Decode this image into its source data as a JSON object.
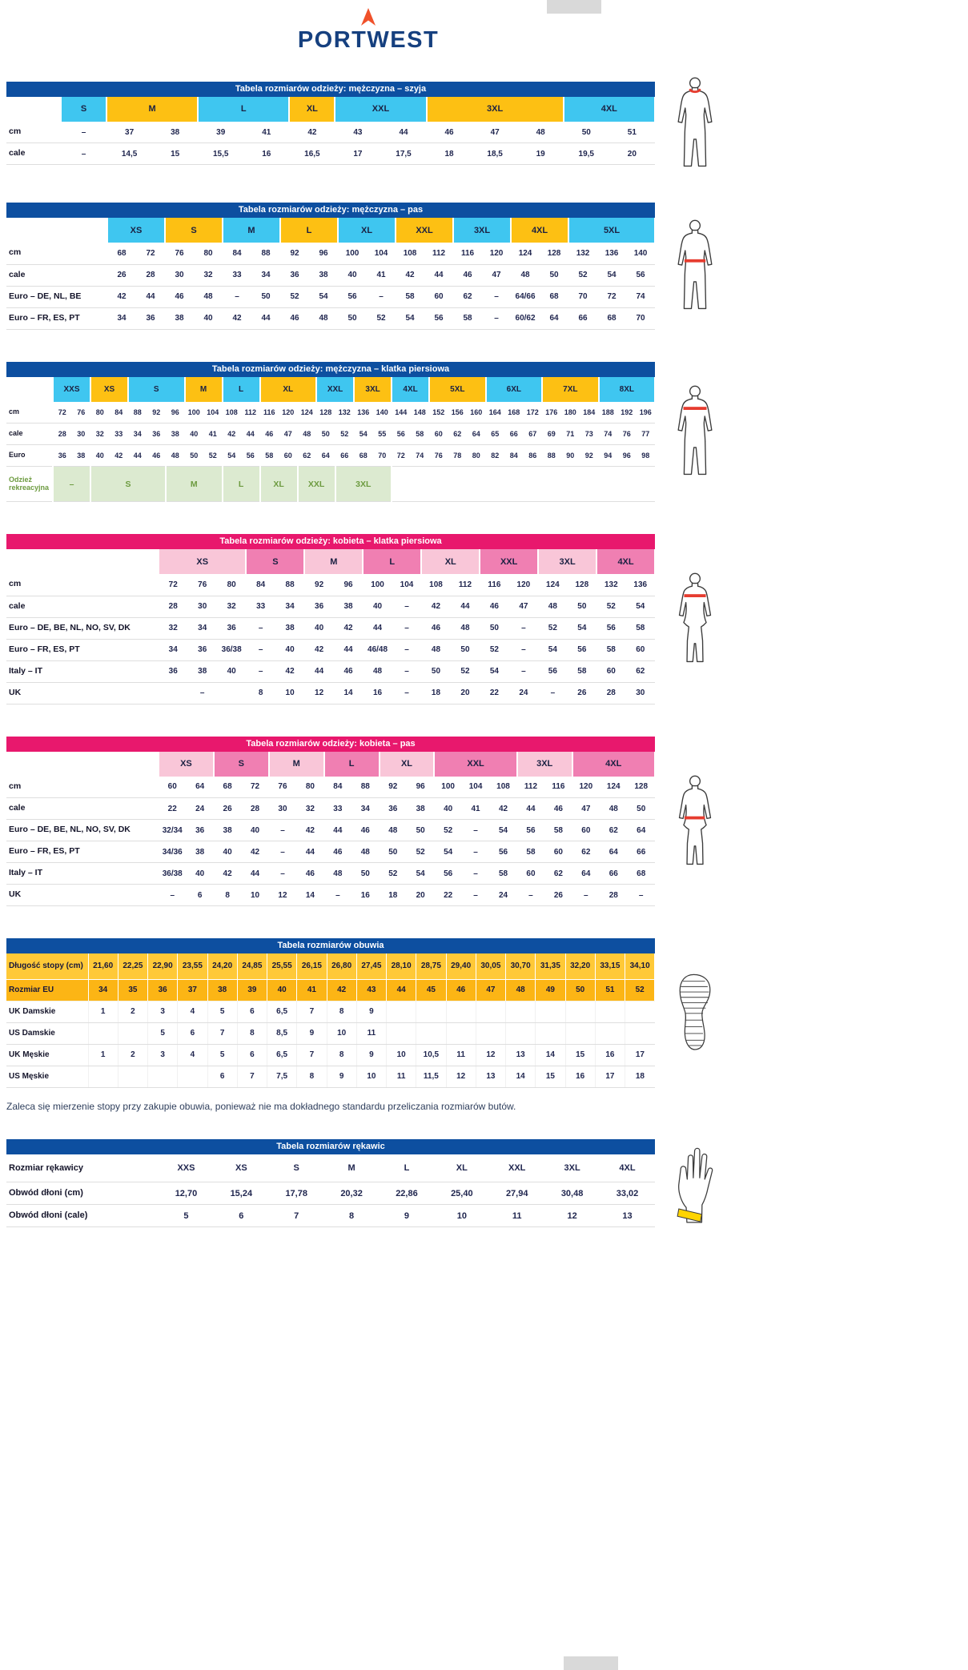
{
  "logo": {
    "brand": "PORTWEST"
  },
  "colors": {
    "blue": "#0d4fa0",
    "pink": "#e8186d",
    "cyan": "#3fc6f0",
    "yellow": "#fdc013",
    "pink_light": "#f9c6d8",
    "pink_dark": "#f07fb2",
    "yellow1": "#ffc937",
    "yellow2": "#fcb515",
    "green_bg": "#dcead0",
    "green_text": "#6d9b40",
    "red": "#e63c2f",
    "orange": "#f0512a",
    "navy": "#16407f",
    "gray_box": "#d9d9d9"
  },
  "tables": [
    {
      "id": "men-neck",
      "title": "Tabela rozmiarów odzieży: mężczyzna – szyja",
      "theme": "blue",
      "figure": "male-neck",
      "label_width": 68,
      "cols": 13,
      "bands": [
        {
          "label": "S",
          "span": 1,
          "c": "cyan"
        },
        {
          "label": "M",
          "span": 2,
          "c": "yellow"
        },
        {
          "label": "L",
          "span": 2,
          "c": "cyan"
        },
        {
          "label": "XL",
          "span": 1,
          "c": "yellow"
        },
        {
          "label": "XXL",
          "span": 2,
          "c": "cyan"
        },
        {
          "label": "3XL",
          "span": 3,
          "c": "yellow"
        },
        {
          "label": "4XL",
          "span": 2,
          "c": "cyan"
        }
      ],
      "rows": [
        {
          "label": "cm",
          "cells": [
            "–",
            "37",
            "38",
            "39",
            "41",
            "42",
            "43",
            "44",
            "46",
            "47",
            "48",
            "50",
            "51"
          ]
        },
        {
          "label": "cale",
          "cells": [
            "–",
            "14,5",
            "15",
            "15,5",
            "16",
            "16,5",
            "17",
            "17,5",
            "18",
            "18,5",
            "19",
            "19,5",
            "20"
          ]
        }
      ]
    },
    {
      "id": "men-waist",
      "title": "Tabela rozmiarów odzieży: mężczyzna – pas",
      "theme": "blue",
      "figure": "male-waist",
      "label_width": 126,
      "cols": 19,
      "bands": [
        {
          "label": "XS",
          "span": 2,
          "c": "cyan"
        },
        {
          "label": "S",
          "span": 2,
          "c": "yellow"
        },
        {
          "label": "M",
          "span": 2,
          "c": "cyan"
        },
        {
          "label": "L",
          "span": 2,
          "c": "yellow"
        },
        {
          "label": "XL",
          "span": 2,
          "c": "cyan"
        },
        {
          "label": "XXL",
          "span": 2,
          "c": "yellow"
        },
        {
          "label": "3XL",
          "span": 2,
          "c": "cyan"
        },
        {
          "label": "4XL",
          "span": 2,
          "c": "yellow"
        },
        {
          "label": "5XL",
          "span": 3,
          "c": "cyan"
        }
      ],
      "rows": [
        {
          "label": "cm",
          "cells": [
            "68",
            "72",
            "76",
            "80",
            "84",
            "88",
            "92",
            "96",
            "100",
            "104",
            "108",
            "112",
            "116",
            "120",
            "124",
            "128",
            "132",
            "136",
            "140"
          ]
        },
        {
          "label": "cale",
          "cells": [
            "26",
            "28",
            "30",
            "32",
            "33",
            "34",
            "36",
            "38",
            "40",
            "41",
            "42",
            "44",
            "46",
            "47",
            "48",
            "50",
            "52",
            "54",
            "56"
          ]
        },
        {
          "label": "Euro – DE, NL, BE",
          "cells": [
            "42",
            "44",
            "46",
            "48",
            "–",
            "50",
            "52",
            "54",
            "56",
            "–",
            "58",
            "60",
            "62",
            "–",
            "64/66",
            "68",
            "70",
            "72",
            "74"
          ]
        },
        {
          "label": "Euro – FR, ES, PT",
          "cells": [
            "34",
            "36",
            "38",
            "40",
            "42",
            "44",
            "46",
            "48",
            "50",
            "52",
            "54",
            "56",
            "58",
            "–",
            "60/62",
            "64",
            "66",
            "68",
            "70"
          ]
        }
      ]
    },
    {
      "id": "men-chest",
      "title": "Tabela rozmiarów odzieży: mężczyzna – klatka piersiowa",
      "theme": "blue",
      "figure": "male-chest",
      "label_width": 58,
      "cols": 32,
      "cls": "dense",
      "bands": [
        {
          "label": "XXS",
          "span": 2,
          "c": "cyan"
        },
        {
          "label": "XS",
          "span": 2,
          "c": "yellow"
        },
        {
          "label": "S",
          "span": 3,
          "c": "cyan"
        },
        {
          "label": "M",
          "span": 2,
          "c": "yellow"
        },
        {
          "label": "L",
          "span": 2,
          "c": "cyan"
        },
        {
          "label": "XL",
          "span": 3,
          "c": "yellow"
        },
        {
          "label": "XXL",
          "span": 2,
          "c": "cyan"
        },
        {
          "label": "3XL",
          "span": 2,
          "c": "yellow"
        },
        {
          "label": "4XL",
          "span": 2,
          "c": "cyan"
        },
        {
          "label": "5XL",
          "span": 3,
          "c": "yellow"
        },
        {
          "label": "6XL",
          "span": 3,
          "c": "cyan"
        },
        {
          "label": "7XL",
          "span": 3,
          "c": "yellow"
        },
        {
          "label": "8XL",
          "span": 3,
          "c": "cyan"
        }
      ],
      "rows": [
        {
          "label": "cm",
          "cells": [
            "72",
            "76",
            "80",
            "84",
            "88",
            "92",
            "96",
            "100",
            "104",
            "108",
            "112",
            "116",
            "120",
            "124",
            "128",
            "132",
            "136",
            "140",
            "144",
            "148",
            "152",
            "156",
            "160",
            "164",
            "168",
            "172",
            "176",
            "180",
            "184",
            "188",
            "192",
            "196"
          ]
        },
        {
          "label": "cale",
          "cells": [
            "28",
            "30",
            "32",
            "33",
            "34",
            "36",
            "38",
            "40",
            "41",
            "42",
            "44",
            "46",
            "47",
            "48",
            "50",
            "52",
            "54",
            "55",
            "56",
            "58",
            "60",
            "62",
            "64",
            "65",
            "66",
            "67",
            "69",
            "71",
            "73",
            "74",
            "76",
            "77"
          ]
        },
        {
          "label": "Euro",
          "cells": [
            "36",
            "38",
            "40",
            "42",
            "44",
            "46",
            "48",
            "50",
            "52",
            "54",
            "56",
            "58",
            "60",
            "62",
            "64",
            "66",
            "68",
            "70",
            "72",
            "74",
            "76",
            "78",
            "80",
            "82",
            "84",
            "86",
            "88",
            "90",
            "92",
            "94",
            "96",
            "98"
          ]
        },
        {
          "label": "Odzież rekreacyjna",
          "cls": "rec",
          "cells": [
            {
              "t": "–",
              "span": 2
            },
            {
              "t": "S",
              "span": 4
            },
            {
              "t": "M",
              "span": 3
            },
            {
              "t": "L",
              "span": 2
            },
            {
              "t": "XL",
              "span": 2
            },
            {
              "t": "XXL",
              "span": 2
            },
            {
              "t": "3XL",
              "span": 3
            },
            {
              "t": "",
              "span": 14
            }
          ]
        }
      ]
    },
    {
      "id": "women-chest",
      "title": "Tabela rozmiarów odzieży: kobieta – klatka piersiowa",
      "theme": "pink",
      "figure": "female-chest",
      "label_width": 190,
      "cols": 17,
      "bands": [
        {
          "label": "XS",
          "span": 3,
          "c": "pink_light"
        },
        {
          "label": "S",
          "span": 2,
          "c": "pink_dark"
        },
        {
          "label": "M",
          "span": 2,
          "c": "pink_light"
        },
        {
          "label": "L",
          "span": 2,
          "c": "pink_dark"
        },
        {
          "label": "XL",
          "span": 2,
          "c": "pink_light"
        },
        {
          "label": "XXL",
          "span": 2,
          "c": "pink_dark"
        },
        {
          "label": "3XL",
          "span": 2,
          "c": "pink_light"
        },
        {
          "label": "4XL",
          "span": 2,
          "c": "pink_dark"
        }
      ],
      "rows": [
        {
          "label": "cm",
          "cells": [
            "72",
            "76",
            "80",
            "84",
            "88",
            "92",
            "96",
            "100",
            "104",
            "108",
            "112",
            "116",
            "120",
            "124",
            "128",
            "132",
            "136"
          ]
        },
        {
          "label": "cale",
          "cells": [
            "28",
            "30",
            "32",
            "33",
            "34",
            "36",
            "38",
            "40",
            "–",
            "42",
            "44",
            "46",
            "47",
            "48",
            "50",
            "52",
            "54"
          ]
        },
        {
          "label": "Euro – DE, BE, NL, NO, SV, DK",
          "cells": [
            "32",
            "34",
            "36",
            "–",
            "38",
            "40",
            "42",
            "44",
            "–",
            "46",
            "48",
            "50",
            "–",
            "52",
            "54",
            "56",
            "58"
          ]
        },
        {
          "label": "Euro – FR, ES, PT",
          "cells": [
            "34",
            "36",
            "36/38",
            "–",
            "40",
            "42",
            "44",
            "46/48",
            "–",
            "48",
            "50",
            "52",
            "–",
            "54",
            "56",
            "58",
            "60"
          ]
        },
        {
          "label": "Italy – IT",
          "cells": [
            "36",
            "38",
            "40",
            "–",
            "42",
            "44",
            "46",
            "48",
            "–",
            "50",
            "52",
            "54",
            "–",
            "56",
            "58",
            "60",
            "62"
          ]
        },
        {
          "label": "UK",
          "cells": [
            {
              "t": "–",
              "span": 3
            },
            "8",
            "10",
            "12",
            "14",
            "16",
            "–",
            "18",
            "20",
            "22",
            "24",
            "–",
            "26",
            "28",
            "30"
          ]
        }
      ]
    },
    {
      "id": "women-waist",
      "title": "Tabela rozmiarów odzieży: kobieta – pas",
      "theme": "pink",
      "figure": "female-waist",
      "label_width": 190,
      "cols": 18,
      "bands": [
        {
          "label": "XS",
          "span": 2,
          "c": "pink_light"
        },
        {
          "label": "S",
          "span": 2,
          "c": "pink_dark"
        },
        {
          "label": "M",
          "span": 2,
          "c": "pink_light"
        },
        {
          "label": "L",
          "span": 2,
          "c": "pink_dark"
        },
        {
          "label": "XL",
          "span": 2,
          "c": "pink_light"
        },
        {
          "label": "XXL",
          "span": 3,
          "c": "pink_dark"
        },
        {
          "label": "3XL",
          "span": 2,
          "c": "pink_light"
        },
        {
          "label": "4XL",
          "span": 3,
          "c": "pink_dark"
        }
      ],
      "rows": [
        {
          "label": "cm",
          "cells": [
            "60",
            "64",
            "68",
            "72",
            "76",
            "80",
            "84",
            "88",
            "92",
            "96",
            "100",
            "104",
            "108",
            "112",
            "116",
            "120",
            "124",
            "128"
          ]
        },
        {
          "label": "cale",
          "cells": [
            "22",
            "24",
            "26",
            "28",
            "30",
            "32",
            "33",
            "34",
            "36",
            "38",
            "40",
            "41",
            "42",
            "44",
            "46",
            "47",
            "48",
            "50"
          ]
        },
        {
          "label": "Euro – DE, BE, NL, NO, SV, DK",
          "cells": [
            "32/34",
            "36",
            "38",
            "40",
            "–",
            "42",
            "44",
            "46",
            "48",
            "50",
            "52",
            "–",
            "54",
            "56",
            "58",
            "60",
            "62",
            "64"
          ]
        },
        {
          "label": "Euro – FR, ES, PT",
          "cells": [
            "34/36",
            "38",
            "40",
            "42",
            "–",
            "44",
            "46",
            "48",
            "50",
            "52",
            "54",
            "–",
            "56",
            "58",
            "60",
            "62",
            "64",
            "66"
          ]
        },
        {
          "label": "Italy – IT",
          "cells": [
            "36/38",
            "40",
            "42",
            "44",
            "–",
            "46",
            "48",
            "50",
            "52",
            "54",
            "56",
            "–",
            "58",
            "60",
            "62",
            "64",
            "66",
            "68"
          ]
        },
        {
          "label": "UK",
          "cells": [
            "–",
            "6",
            "8",
            "10",
            "12",
            "14",
            "–",
            "16",
            "18",
            "20",
            "22",
            "–",
            "24",
            "–",
            "26",
            "–",
            "28",
            "–"
          ]
        }
      ]
    },
    {
      "id": "footwear",
      "title": "Tabela rozmiarów obuwia",
      "theme": "blue",
      "figure": "shoe-sole",
      "label_width": 102,
      "cols": 19,
      "cls": "shoes",
      "footnote": "Zaleca się mierzenie stopy przy zakupie obuwia, ponieważ nie ma dokładnego standardu przeliczania rozmiarów butów.",
      "rows": [
        {
          "label": "Długość stopy (cm)",
          "cls": "yellow1",
          "cells": [
            "21,60",
            "22,25",
            "22,90",
            "23,55",
            "24,20",
            "24,85",
            "25,55",
            "26,15",
            "26,80",
            "27,45",
            "28,10",
            "28,75",
            "29,40",
            "30,05",
            "30,70",
            "31,35",
            "32,20",
            "33,15",
            "34,10"
          ]
        },
        {
          "label": "Rozmiar EU",
          "cls": "yellow2",
          "cells": [
            "34",
            "35",
            "36",
            "37",
            "38",
            "39",
            "40",
            "41",
            "42",
            "43",
            "44",
            "45",
            "46",
            "47",
            "48",
            "49",
            "50",
            "51",
            "52"
          ]
        },
        {
          "label": "UK Damskie",
          "cells": [
            "1",
            "2",
            "3",
            "4",
            "5",
            "6",
            "6,5",
            "7",
            "8",
            "9",
            "",
            "",
            "",
            "",
            "",
            "",
            "",
            "",
            ""
          ]
        },
        {
          "label": "US Damskie",
          "cells": [
            "",
            "",
            "5",
            "6",
            "7",
            "8",
            "8,5",
            "9",
            "10",
            "11",
            "",
            "",
            "",
            "",
            "",
            "",
            "",
            "",
            ""
          ]
        },
        {
          "label": "UK Męskie",
          "cells": [
            "1",
            "2",
            "3",
            "4",
            "5",
            "6",
            "6,5",
            "7",
            "8",
            "9",
            "10",
            "10,5",
            "11",
            "12",
            "13",
            "14",
            "15",
            "16",
            "17"
          ]
        },
        {
          "label": "US Męskie",
          "cells": [
            "",
            "",
            "",
            "",
            "6",
            "7",
            "7,5",
            "8",
            "9",
            "10",
            "11",
            "11,5",
            "12",
            "13",
            "14",
            "15",
            "16",
            "17",
            "18"
          ]
        }
      ]
    },
    {
      "id": "gloves",
      "title": "Tabela rozmiarów rękawic",
      "theme": "blue",
      "figure": "glove-hand",
      "label_width": 190,
      "cols": 9,
      "cls": "gloves",
      "rows": [
        {
          "label": "Rozmiar rękawicy",
          "cls": "sizehead",
          "cells": [
            "XXS",
            "XS",
            "S",
            "M",
            "L",
            "XL",
            "XXL",
            "3XL",
            "4XL"
          ]
        },
        {
          "label": "Obwód dłoni (cm)",
          "cells": [
            "12,70",
            "15,24",
            "17,78",
            "20,32",
            "22,86",
            "25,40",
            "27,94",
            "30,48",
            "33,02"
          ]
        },
        {
          "label": "Obwód dłoni (cale)",
          "cells": [
            "5",
            "6",
            "7",
            "8",
            "9",
            "10",
            "11",
            "12",
            "13"
          ]
        }
      ]
    }
  ]
}
